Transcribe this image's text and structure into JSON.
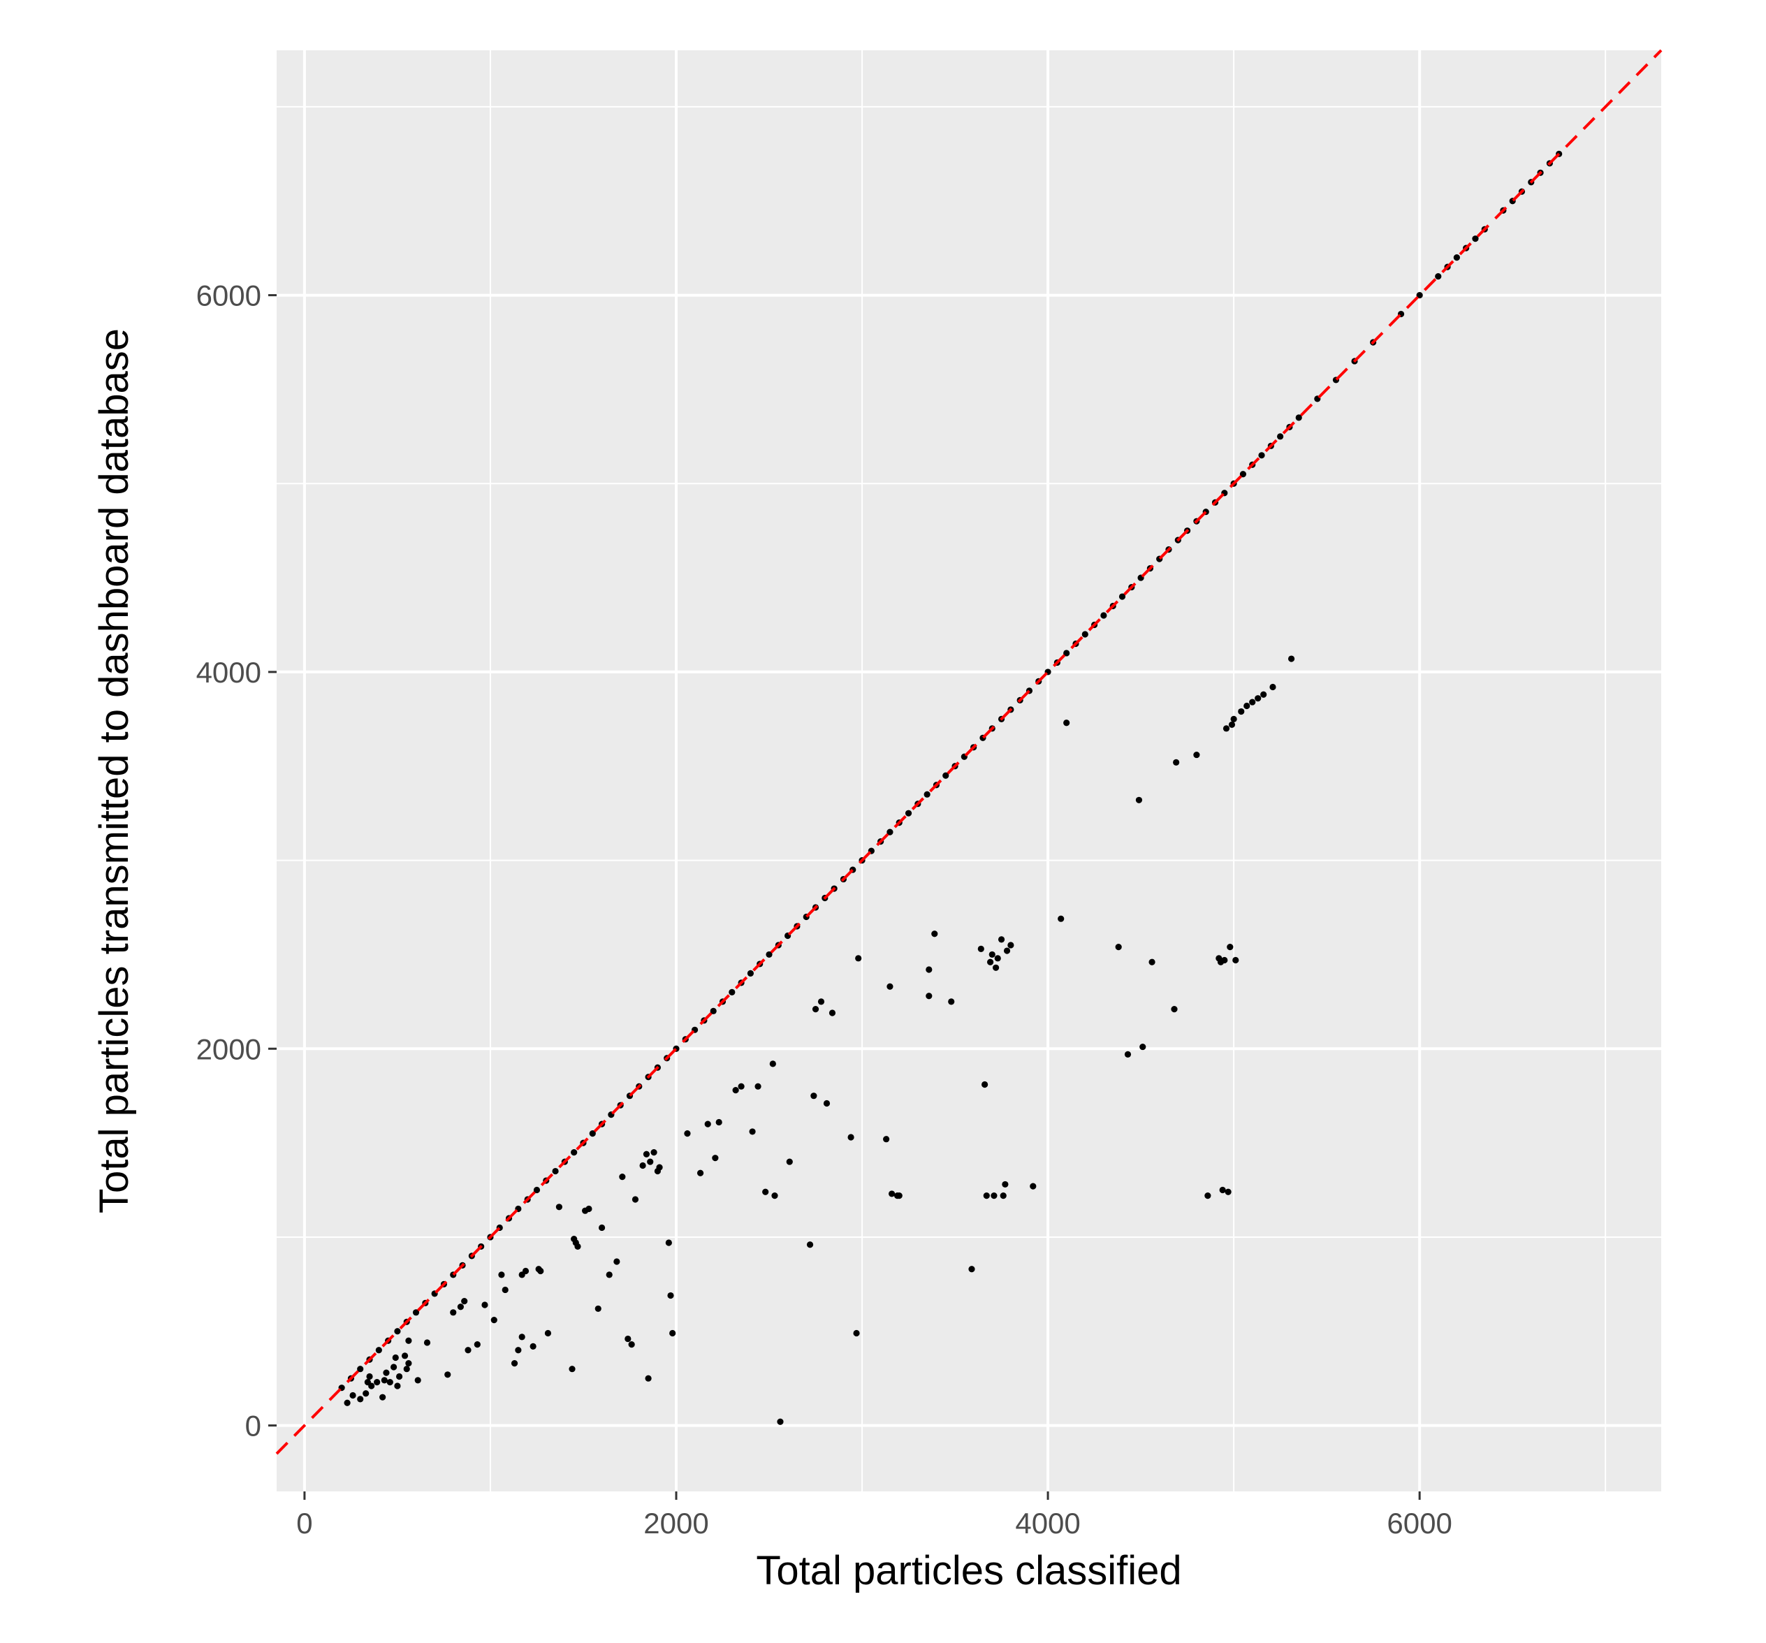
{
  "chart_data": {
    "type": "scatter",
    "title": "",
    "xlabel": "Total particles classified",
    "ylabel": "Total particles transmitted to dashboard database",
    "xlim": [
      -150,
      7300
    ],
    "ylim": [
      -350,
      7300
    ],
    "x_ticks": [
      0,
      2000,
      4000,
      6000
    ],
    "y_ticks": [
      0,
      2000,
      4000,
      6000
    ],
    "grid": true,
    "legend": "none",
    "colors": {
      "panel": "#ebebeb",
      "grid": "#ffffff",
      "points": "#000000",
      "reference_line": "#ff0000"
    },
    "reference_line": {
      "style": "dashed",
      "slope": 1,
      "intercept": 0
    },
    "series": [
      {
        "points": [
          [
            200,
            200
          ],
          [
            250,
            250
          ],
          [
            300,
            300
          ],
          [
            350,
            350
          ],
          [
            400,
            400
          ],
          [
            450,
            450
          ],
          [
            500,
            500
          ],
          [
            550,
            550
          ],
          [
            600,
            600
          ],
          [
            650,
            650
          ],
          [
            700,
            700
          ],
          [
            750,
            750
          ],
          [
            800,
            800
          ],
          [
            850,
            850
          ],
          [
            900,
            900
          ],
          [
            950,
            950
          ],
          [
            1000,
            1000
          ],
          [
            1050,
            1050
          ],
          [
            1100,
            1100
          ],
          [
            1150,
            1150
          ],
          [
            1200,
            1200
          ],
          [
            1250,
            1250
          ],
          [
            1300,
            1300
          ],
          [
            1350,
            1350
          ],
          [
            1400,
            1400
          ],
          [
            1450,
            1450
          ],
          [
            1500,
            1500
          ],
          [
            1550,
            1550
          ],
          [
            1600,
            1600
          ],
          [
            1650,
            1650
          ],
          [
            1700,
            1700
          ],
          [
            1750,
            1750
          ],
          [
            1800,
            1800
          ],
          [
            1850,
            1850
          ],
          [
            1900,
            1900
          ],
          [
            1950,
            1950
          ],
          [
            2000,
            2000
          ],
          [
            2050,
            2050
          ],
          [
            2100,
            2100
          ],
          [
            2150,
            2150
          ],
          [
            2200,
            2200
          ],
          [
            2250,
            2250
          ],
          [
            2300,
            2300
          ],
          [
            2350,
            2350
          ],
          [
            2400,
            2400
          ],
          [
            2450,
            2450
          ],
          [
            2500,
            2500
          ],
          [
            2550,
            2550
          ],
          [
            2600,
            2600
          ],
          [
            2650,
            2650
          ],
          [
            2700,
            2700
          ],
          [
            2750,
            2750
          ],
          [
            2800,
            2800
          ],
          [
            2850,
            2850
          ],
          [
            2900,
            2900
          ],
          [
            2950,
            2950
          ],
          [
            3000,
            3000
          ],
          [
            3050,
            3050
          ],
          [
            3100,
            3100
          ],
          [
            3150,
            3150
          ],
          [
            3200,
            3200
          ],
          [
            3250,
            3250
          ],
          [
            3300,
            3300
          ],
          [
            3350,
            3350
          ],
          [
            3400,
            3400
          ],
          [
            3450,
            3450
          ],
          [
            3500,
            3500
          ],
          [
            3550,
            3550
          ],
          [
            3600,
            3600
          ],
          [
            3650,
            3650
          ],
          [
            3700,
            3700
          ],
          [
            3750,
            3750
          ],
          [
            3800,
            3800
          ],
          [
            3850,
            3850
          ],
          [
            3900,
            3900
          ],
          [
            3950,
            3950
          ],
          [
            4000,
            4000
          ],
          [
            4050,
            4050
          ],
          [
            4100,
            4100
          ],
          [
            4150,
            4150
          ],
          [
            4200,
            4200
          ],
          [
            4250,
            4250
          ],
          [
            4300,
            4300
          ],
          [
            4350,
            4350
          ],
          [
            4400,
            4400
          ],
          [
            4450,
            4450
          ],
          [
            4500,
            4500
          ],
          [
            4550,
            4550
          ],
          [
            4600,
            4600
          ],
          [
            4650,
            4650
          ],
          [
            4700,
            4700
          ],
          [
            4750,
            4750
          ],
          [
            4800,
            4800
          ],
          [
            4850,
            4850
          ],
          [
            4900,
            4900
          ],
          [
            4950,
            4950
          ],
          [
            5000,
            5000
          ],
          [
            5050,
            5050
          ],
          [
            5100,
            5100
          ],
          [
            5150,
            5150
          ],
          [
            5200,
            5200
          ],
          [
            5250,
            5250
          ],
          [
            5300,
            5300
          ],
          [
            5350,
            5350
          ],
          [
            5450,
            5450
          ],
          [
            5550,
            5550
          ],
          [
            5650,
            5650
          ],
          [
            5750,
            5750
          ],
          [
            5900,
            5900
          ],
          [
            6000,
            6000
          ],
          [
            6100,
            6100
          ],
          [
            6150,
            6150
          ],
          [
            6200,
            6200
          ],
          [
            6250,
            6250
          ],
          [
            6300,
            6300
          ],
          [
            6350,
            6350
          ],
          [
            6450,
            6450
          ],
          [
            6500,
            6500
          ],
          [
            6550,
            6550
          ],
          [
            6600,
            6600
          ],
          [
            6650,
            6650
          ],
          [
            6700,
            6700
          ],
          [
            6750,
            6750
          ],
          [
            230,
            120
          ],
          [
            260,
            160
          ],
          [
            300,
            140
          ],
          [
            330,
            170
          ],
          [
            340,
            230
          ],
          [
            350,
            260
          ],
          [
            360,
            210
          ],
          [
            390,
            230
          ],
          [
            420,
            150
          ],
          [
            430,
            240
          ],
          [
            440,
            280
          ],
          [
            460,
            230
          ],
          [
            480,
            310
          ],
          [
            490,
            360
          ],
          [
            500,
            210
          ],
          [
            510,
            260
          ],
          [
            540,
            370
          ],
          [
            550,
            300
          ],
          [
            560,
            330
          ],
          [
            560,
            450
          ],
          [
            610,
            240
          ],
          [
            660,
            440
          ],
          [
            770,
            270
          ],
          [
            800,
            600
          ],
          [
            840,
            630
          ],
          [
            860,
            660
          ],
          [
            880,
            400
          ],
          [
            930,
            430
          ],
          [
            970,
            640
          ],
          [
            1020,
            560
          ],
          [
            1060,
            800
          ],
          [
            1080,
            720
          ],
          [
            1130,
            330
          ],
          [
            1150,
            400
          ],
          [
            1170,
            470
          ],
          [
            1170,
            800
          ],
          [
            1190,
            820
          ],
          [
            1230,
            420
          ],
          [
            1260,
            830
          ],
          [
            1270,
            820
          ],
          [
            1310,
            490
          ],
          [
            1370,
            1160
          ],
          [
            1440,
            300
          ],
          [
            1450,
            990
          ],
          [
            1460,
            970
          ],
          [
            1470,
            950
          ],
          [
            1510,
            1140
          ],
          [
            1530,
            1150
          ],
          [
            1580,
            620
          ],
          [
            1600,
            1050
          ],
          [
            1640,
            800
          ],
          [
            1680,
            870
          ],
          [
            1710,
            1320
          ],
          [
            1740,
            460
          ],
          [
            1760,
            430
          ],
          [
            1780,
            1200
          ],
          [
            1820,
            1380
          ],
          [
            1840,
            1440
          ],
          [
            1850,
            250
          ],
          [
            1860,
            1400
          ],
          [
            1880,
            1450
          ],
          [
            1900,
            1350
          ],
          [
            1910,
            1370
          ],
          [
            1960,
            970
          ],
          [
            1970,
            690
          ],
          [
            1980,
            490
          ],
          [
            2060,
            1550
          ],
          [
            2130,
            1340
          ],
          [
            2170,
            1600
          ],
          [
            2210,
            1420
          ],
          [
            2230,
            1610
          ],
          [
            2320,
            1780
          ],
          [
            2350,
            1800
          ],
          [
            2410,
            1560
          ],
          [
            2440,
            1800
          ],
          [
            2480,
            1240
          ],
          [
            2520,
            1920
          ],
          [
            2530,
            1220
          ],
          [
            2560,
            20
          ],
          [
            2610,
            1400
          ],
          [
            2720,
            960
          ],
          [
            2740,
            1750
          ],
          [
            2750,
            2210
          ],
          [
            2780,
            2250
          ],
          [
            2810,
            1710
          ],
          [
            2840,
            2190
          ],
          [
            2940,
            1530
          ],
          [
            2970,
            490
          ],
          [
            2980,
            2480
          ],
          [
            3130,
            1520
          ],
          [
            3150,
            2330
          ],
          [
            3160,
            1230
          ],
          [
            3190,
            1220
          ],
          [
            3200,
            1220
          ],
          [
            3360,
            2420
          ],
          [
            3360,
            2280
          ],
          [
            3390,
            2610
          ],
          [
            3480,
            2250
          ],
          [
            3590,
            830
          ],
          [
            3640,
            2530
          ],
          [
            3660,
            1810
          ],
          [
            3670,
            1220
          ],
          [
            3690,
            2460
          ],
          [
            3700,
            2500
          ],
          [
            3710,
            1220
          ],
          [
            3720,
            2430
          ],
          [
            3730,
            2480
          ],
          [
            3750,
            2580
          ],
          [
            3760,
            1220
          ],
          [
            3770,
            1280
          ],
          [
            3780,
            2520
          ],
          [
            3800,
            2550
          ],
          [
            3920,
            1270
          ],
          [
            4070,
            2690
          ],
          [
            4100,
            3730
          ],
          [
            4380,
            2540
          ],
          [
            4430,
            1970
          ],
          [
            4490,
            3320
          ],
          [
            4510,
            2010
          ],
          [
            4560,
            2460
          ],
          [
            4680,
            2210
          ],
          [
            4690,
            3520
          ],
          [
            4800,
            3560
          ],
          [
            4860,
            1220
          ],
          [
            4920,
            2480
          ],
          [
            4930,
            2460
          ],
          [
            4940,
            1250
          ],
          [
            4950,
            2470
          ],
          [
            4960,
            3700
          ],
          [
            4970,
            1240
          ],
          [
            4980,
            2540
          ],
          [
            4990,
            3720
          ],
          [
            5000,
            3750
          ],
          [
            5010,
            2470
          ],
          [
            5040,
            3790
          ],
          [
            5070,
            3820
          ],
          [
            5100,
            3840
          ],
          [
            5130,
            3860
          ],
          [
            5160,
            3880
          ],
          [
            5210,
            3920
          ],
          [
            5310,
            4070
          ]
        ]
      }
    ]
  }
}
